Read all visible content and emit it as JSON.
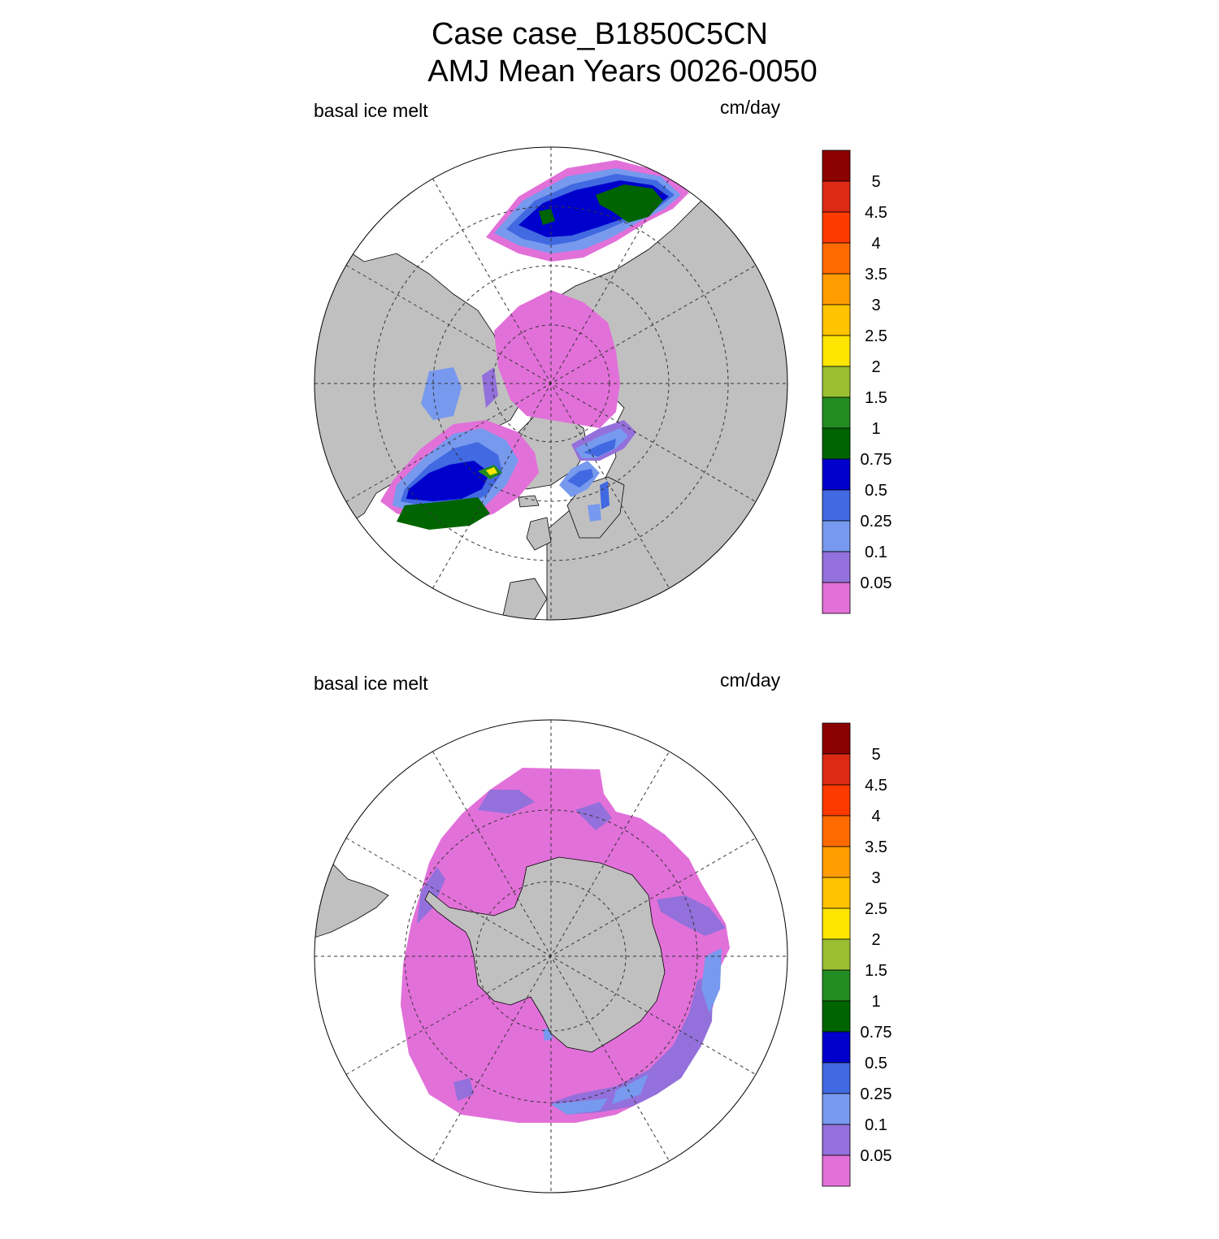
{
  "title": {
    "line1": "Case case_B1850C5CN",
    "line2": "AMJ Mean   Years 0026-0050"
  },
  "panels": [
    {
      "hemisphere": "north",
      "variable": "basal ice melt",
      "units": "cm/day"
    },
    {
      "hemisphere": "south",
      "variable": "basal ice melt",
      "units": "cm/day"
    }
  ],
  "colorbar": {
    "levels": [
      "0.05",
      "0.1",
      "0.25",
      "0.5",
      "0.75",
      "1",
      "1.5",
      "2",
      "2.5",
      "3",
      "3.5",
      "4",
      "4.5",
      "5"
    ],
    "colors": [
      "#e270d9",
      "#9370db",
      "#7799ee",
      "#4169e1",
      "#0000cd",
      "#006400",
      "#228b22",
      "#9ac032",
      "#ffe600",
      "#ffc300",
      "#ff9d00",
      "#ff6a00",
      "#ff3a00",
      "#dc2a14",
      "#8b0000"
    ]
  },
  "map_style": {
    "land_color": "#c0c0c0",
    "coastline_color": "#000000"
  }
}
